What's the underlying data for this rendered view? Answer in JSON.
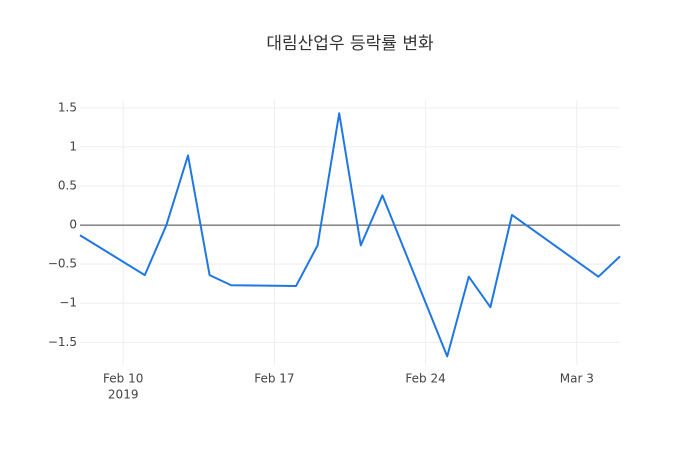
{
  "chart_data": {
    "type": "line",
    "title": "대림산업우 등락률 변화",
    "x": [
      "2019-02-08",
      "2019-02-11",
      "2019-02-12",
      "2019-02-13",
      "2019-02-14",
      "2019-02-15",
      "2019-02-18",
      "2019-02-19",
      "2019-02-20",
      "2019-02-21",
      "2019-02-22",
      "2019-02-25",
      "2019-02-26",
      "2019-02-27",
      "2019-02-28",
      "2019-03-04",
      "2019-03-05"
    ],
    "series": [
      {
        "color": "#1f77e4",
        "values": [
          -0.13,
          -0.64,
          0.0,
          0.89,
          -0.64,
          -0.77,
          -0.78,
          -0.26,
          1.43,
          -0.26,
          0.38,
          -1.68,
          -0.66,
          -1.05,
          0.13,
          -0.66,
          -0.4
        ]
      }
    ],
    "xlim": [
      "2019-02-08",
      "2019-03-05"
    ],
    "xticks": [
      {
        "value": "2019-02-10",
        "label": "Feb 10"
      },
      {
        "value": "2019-02-17",
        "label": "Feb 17"
      },
      {
        "value": "2019-02-24",
        "label": "Feb 24"
      },
      {
        "value": "2019-03-03",
        "label": "Mar 3"
      }
    ],
    "x_tick_year": "2019",
    "ylim": [
      -1.79,
      1.6
    ],
    "yticks": [
      {
        "value": -1.5,
        "label": "−1.5"
      },
      {
        "value": -1,
        "label": "−1"
      },
      {
        "value": -0.5,
        "label": "−0.5"
      },
      0,
      0.5,
      1,
      1.5
    ],
    "grid": true
  }
}
